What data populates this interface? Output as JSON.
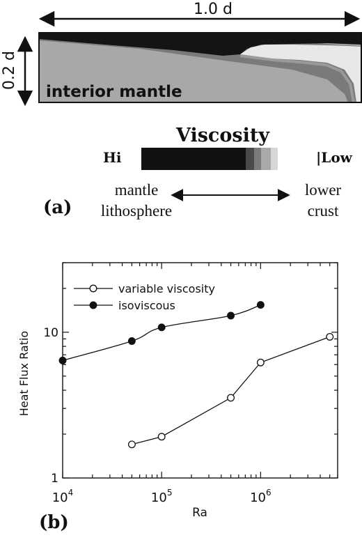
{
  "panel_a": {
    "label": "(a)",
    "width_label": "1.0 d",
    "height_label": "0.2 d",
    "region_label": "interior mantle",
    "viscosity": {
      "title": "Viscosity",
      "hi_label": "Hi",
      "low_label": "|Low",
      "colors": [
        "#111111",
        "#4a4a4a",
        "#7a7a7a",
        "#a9a9a9",
        "#d6d6d6"
      ],
      "left_label_line1": "mantle",
      "left_label_line2": "lithosphere",
      "right_label_line1": "lower",
      "right_label_line2": "crust"
    }
  },
  "panel_b": {
    "label": "(b)"
  },
  "chart_data": {
    "type": "line",
    "xlabel": "Ra",
    "ylabel": "Heat Flux Ratio",
    "xscale": "log",
    "yscale": "log",
    "xlim": [
      10000,
      6000000
    ],
    "ylim": [
      1,
      30
    ],
    "x_ticks": [
      {
        "value": 10000,
        "base": "10",
        "exp": "4"
      },
      {
        "value": 100000,
        "base": "10",
        "exp": "5"
      },
      {
        "value": 1000000,
        "base": "10",
        "exp": "6"
      }
    ],
    "y_ticks": [
      {
        "value": 1,
        "label": "1"
      },
      {
        "value": 10,
        "label": "10"
      }
    ],
    "legend_position": "top-left",
    "series": [
      {
        "name": "variable  viscosity",
        "marker": "open-circle",
        "x": [
          50000,
          100000,
          500000,
          1000000,
          5000000
        ],
        "y": [
          1.7,
          1.92,
          3.55,
          6.2,
          9.3
        ]
      },
      {
        "name": "isoviscous",
        "marker": "filled-circle",
        "x": [
          10000,
          50000,
          100000,
          500000,
          1000000
        ],
        "y": [
          6.4,
          8.7,
          10.8,
          13.0,
          15.4
        ]
      }
    ]
  }
}
